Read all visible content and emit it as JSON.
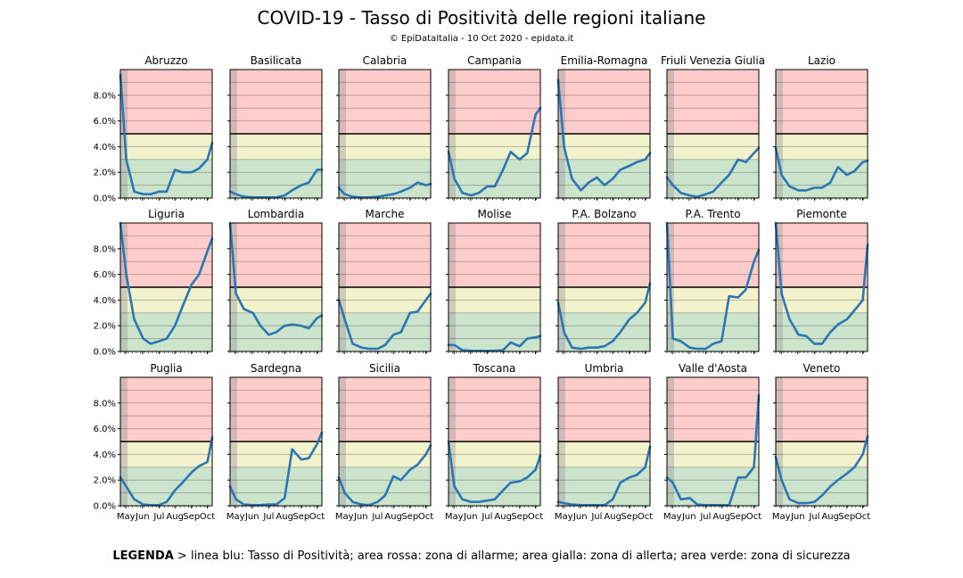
{
  "title": "COVID-19 - Tasso di Positività delle regioni italiane",
  "subtitle": "© EpiDataItalia - 10 Oct 2020 - epidata.it",
  "legend": {
    "label": "LEGENDA",
    "text": " > linea blu: Tasso di Positività; area rossa: zona di allarme; area gialla: zona di allerta; area verde: zona di sicurezza"
  },
  "colors": {
    "line": "#2a77b4",
    "red_zone": "#ffcccc",
    "yellow_zone": "#f2f2cc",
    "green_zone": "#cce4cc",
    "shade": "#a0a0a0"
  },
  "chart_data": {
    "type": "line",
    "x_ticks": [
      "May",
      "Jun",
      "Jul",
      "Aug",
      "Sep",
      "Oct"
    ],
    "y_ticks": [
      "0.0%",
      "2.0%",
      "4.0%",
      "6.0%",
      "8.0%"
    ],
    "ylim": [
      0,
      10
    ],
    "zones": {
      "green_max": 3,
      "yellow_max": 5
    },
    "x": [
      "Apr 20",
      "May 1",
      "May 15",
      "Jun 1",
      "Jun 15",
      "Jul 1",
      "Jul 15",
      "Aug 1",
      "Aug 15",
      "Sep 1",
      "Sep 15",
      "Oct 1",
      "Oct 10"
    ],
    "panels": [
      {
        "region": "Abruzzo",
        "values": [
          9.6,
          3.0,
          0.5,
          0.3,
          0.3,
          0.5,
          0.5,
          2.2,
          2.0,
          2.0,
          2.3,
          3.0,
          4.3
        ]
      },
      {
        "region": "Basilicata",
        "values": [
          0.5,
          0.3,
          0.1,
          0.05,
          0.05,
          0.05,
          0.05,
          0.2,
          0.6,
          1.0,
          1.2,
          2.2,
          2.2
        ]
      },
      {
        "region": "Calabria",
        "values": [
          0.8,
          0.3,
          0.1,
          0.05,
          0.05,
          0.1,
          0.2,
          0.3,
          0.5,
          0.8,
          1.2,
          1.0,
          1.1
        ]
      },
      {
        "region": "Campania",
        "values": [
          3.6,
          1.5,
          0.4,
          0.2,
          0.4,
          0.9,
          0.9,
          2.2,
          3.6,
          3.0,
          3.5,
          6.5,
          7.0
        ]
      },
      {
        "region": "Emilia-Romagna",
        "values": [
          9.2,
          4.0,
          1.5,
          0.6,
          1.2,
          1.6,
          1.0,
          1.5,
          2.2,
          2.5,
          2.8,
          3.0,
          3.5
        ]
      },
      {
        "region": "Friuli Venezia Giulia",
        "values": [
          1.6,
          1.0,
          0.4,
          0.2,
          0.1,
          0.3,
          0.5,
          1.2,
          1.8,
          3.0,
          2.8,
          3.5,
          3.9
        ]
      },
      {
        "region": "Lazio",
        "values": [
          3.9,
          1.8,
          0.9,
          0.6,
          0.6,
          0.8,
          0.8,
          1.2,
          2.4,
          1.8,
          2.1,
          2.8,
          2.9
        ]
      },
      {
        "region": "Liguria",
        "values": [
          12.0,
          6.0,
          2.5,
          1.0,
          0.6,
          0.8,
          1.0,
          2.0,
          3.5,
          5.2,
          6.0,
          7.8,
          8.8
        ]
      },
      {
        "region": "Lombardia",
        "values": [
          12.0,
          4.5,
          3.3,
          3.0,
          2.0,
          1.3,
          1.5,
          2.0,
          2.1,
          2.0,
          1.8,
          2.6,
          2.8
        ]
      },
      {
        "region": "Marche",
        "values": [
          4.0,
          2.5,
          0.6,
          0.3,
          0.2,
          0.2,
          0.5,
          1.3,
          1.5,
          3.0,
          3.1,
          4.0,
          4.5
        ]
      },
      {
        "region": "Molise",
        "values": [
          0.5,
          0.5,
          0.1,
          0.05,
          0.05,
          0.05,
          0.05,
          0.1,
          0.7,
          0.4,
          1.0,
          1.1,
          1.2
        ]
      },
      {
        "region": "P.A. Bolzano",
        "values": [
          3.8,
          1.5,
          0.3,
          0.2,
          0.3,
          0.3,
          0.4,
          0.8,
          1.5,
          2.5,
          3.0,
          3.8,
          5.3
        ]
      },
      {
        "region": "P.A. Trento",
        "values": [
          10.0,
          1.0,
          0.8,
          0.3,
          0.2,
          0.2,
          0.6,
          0.8,
          4.3,
          4.2,
          4.8,
          7.0,
          7.9
        ]
      },
      {
        "region": "Piemonte",
        "values": [
          12.0,
          4.5,
          2.5,
          1.3,
          1.2,
          0.6,
          0.6,
          1.5,
          2.1,
          2.5,
          3.2,
          4.0,
          8.3
        ]
      },
      {
        "region": "Puglia",
        "values": [
          2.2,
          1.5,
          0.5,
          0.1,
          0.05,
          0.05,
          0.3,
          1.2,
          1.8,
          2.6,
          3.1,
          3.4,
          5.3
        ]
      },
      {
        "region": "Sardegna",
        "values": [
          1.5,
          0.5,
          0.1,
          0.05,
          0.05,
          0.1,
          0.1,
          0.6,
          4.4,
          3.6,
          3.7,
          4.8,
          5.7
        ]
      },
      {
        "region": "Sicilia",
        "values": [
          2.2,
          1.0,
          0.3,
          0.1,
          0.05,
          0.3,
          0.8,
          2.3,
          2.0,
          2.8,
          3.2,
          4.0,
          4.7
        ]
      },
      {
        "region": "Toscana",
        "values": [
          5.0,
          1.5,
          0.5,
          0.3,
          0.3,
          0.4,
          0.5,
          1.2,
          1.8,
          1.9,
          2.2,
          2.8,
          3.9
        ]
      },
      {
        "region": "Umbria",
        "values": [
          0.3,
          0.2,
          0.1,
          0.05,
          0.05,
          0.05,
          0.05,
          0.5,
          1.8,
          2.2,
          2.4,
          3.0,
          4.6
        ]
      },
      {
        "region": "Valle d'Aosta",
        "values": [
          2.2,
          1.8,
          0.5,
          0.6,
          0.1,
          0.05,
          0.05,
          0.05,
          0.05,
          2.2,
          2.2,
          3.0,
          8.6
        ]
      },
      {
        "region": "Veneto",
        "values": [
          3.8,
          2.0,
          0.5,
          0.2,
          0.2,
          0.3,
          0.8,
          1.5,
          2.0,
          2.5,
          3.0,
          4.0,
          5.4
        ]
      }
    ]
  }
}
